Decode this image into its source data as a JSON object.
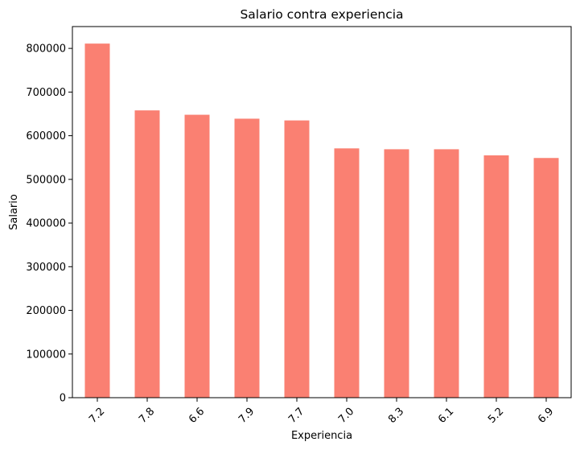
{
  "chart_data": {
    "type": "bar",
    "title": "Salario contra experiencia",
    "xlabel": "Experiencia",
    "ylabel": "Salario",
    "categories": [
      "7.2",
      "7.8",
      "6.6",
      "7.9",
      "7.7",
      "7.0",
      "8.3",
      "6.1",
      "5.2",
      "6.9"
    ],
    "values": [
      811000,
      658000,
      648000,
      639000,
      635000,
      571000,
      569000,
      569000,
      555000,
      549000
    ],
    "ylim": [
      0,
      850000
    ],
    "yticks": [
      0,
      100000,
      200000,
      300000,
      400000,
      500000,
      600000,
      700000,
      800000
    ],
    "ytick_labels": [
      "0",
      "100000",
      "200000",
      "300000",
      "400000",
      "500000",
      "600000",
      "700000",
      "800000"
    ],
    "bar_color": "#fa8072",
    "grid": false,
    "legend": false
  }
}
